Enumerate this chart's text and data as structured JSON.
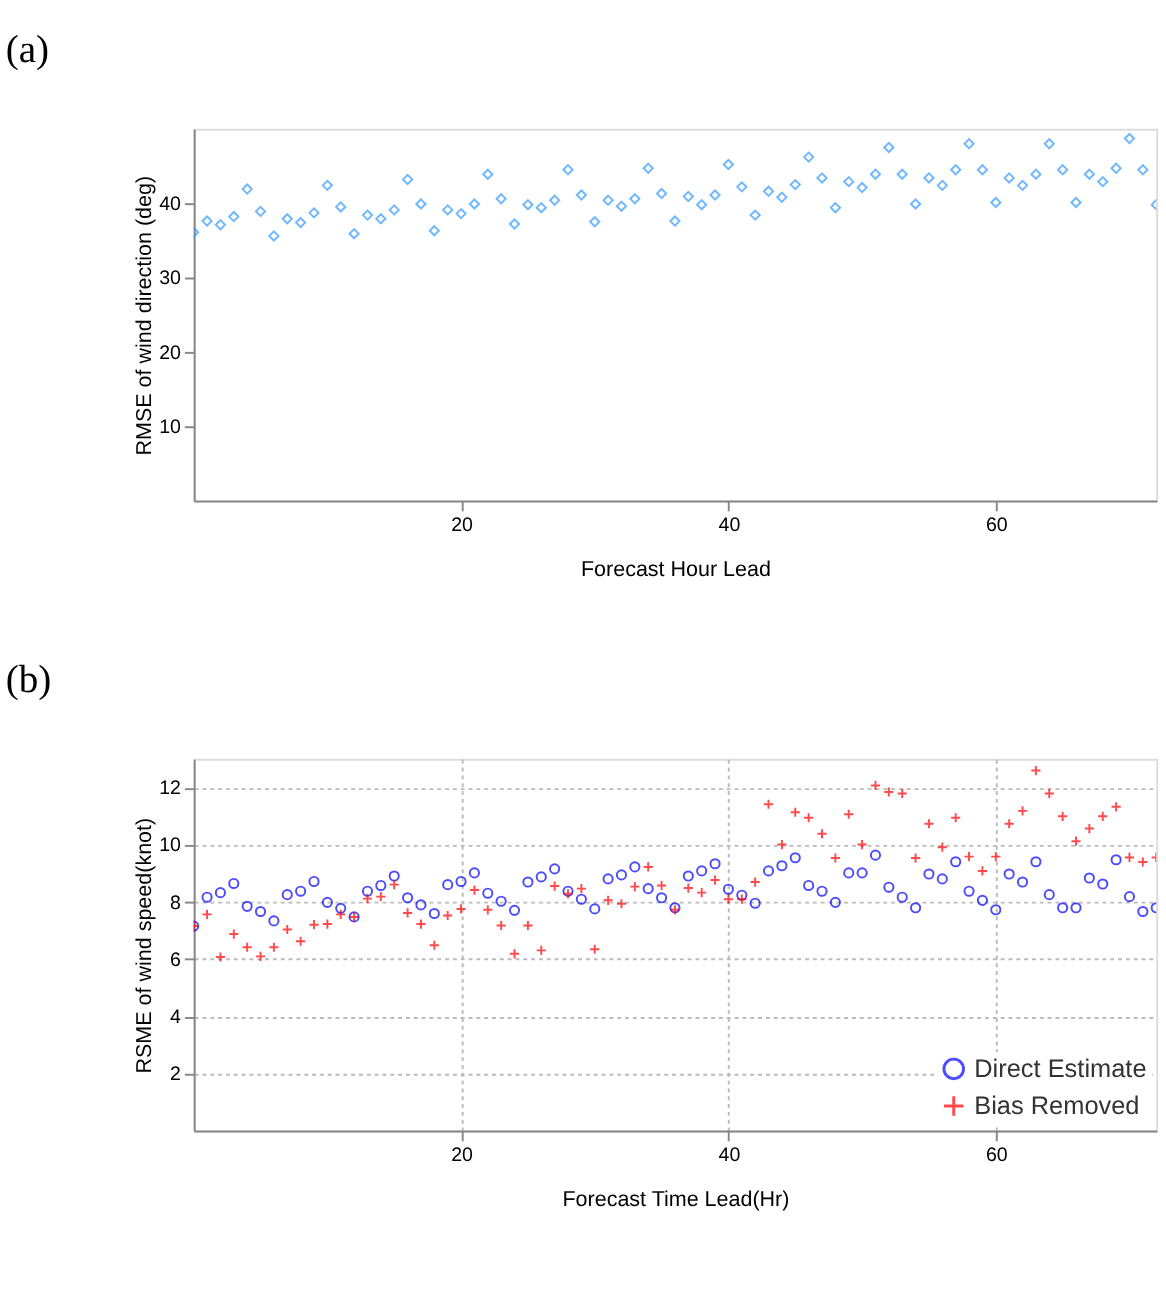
{
  "chart_data": [
    {
      "type": "scatter",
      "title": "(a)",
      "xlabel": "Forecast Hour Lead",
      "ylabel": "RMSE of wind direction (deg)",
      "xlim": [
        0,
        72
      ],
      "ylim": [
        0,
        50
      ],
      "xticks": [
        20,
        40,
        60
      ],
      "yticks": [
        10,
        20,
        30,
        40
      ],
      "grid": false,
      "legend": false,
      "x": [
        0,
        1,
        2,
        3,
        4,
        5,
        6,
        7,
        8,
        9,
        10,
        11,
        12,
        13,
        14,
        15,
        16,
        17,
        18,
        19,
        20,
        21,
        22,
        23,
        24,
        25,
        26,
        27,
        28,
        29,
        30,
        31,
        32,
        33,
        34,
        35,
        36,
        37,
        38,
        39,
        40,
        41,
        42,
        43,
        44,
        45,
        46,
        47,
        48,
        49,
        50,
        51,
        52,
        53,
        54,
        55,
        56,
        57,
        58,
        59,
        60,
        61,
        62,
        63,
        64,
        65,
        66,
        67,
        68,
        69,
        70,
        71,
        72
      ],
      "series": [
        {
          "color": "#3399ff",
          "marker": "diamond",
          "values": [
            36.1,
            37.6,
            37.1,
            38.2,
            41.9,
            38.9,
            35.6,
            37.9,
            37.4,
            38.7,
            42.4,
            39.5,
            35.9,
            38.4,
            37.9,
            39.1,
            43.2,
            39.9,
            36.3,
            39.1,
            38.6,
            39.9,
            43.9,
            40.6,
            37.2,
            39.8,
            39.4,
            40.4,
            44.5,
            41.1,
            37.5,
            40.4,
            39.6,
            40.6,
            44.7,
            41.3,
            37.6,
            40.9,
            39.8,
            41.1,
            45.2,
            42.2,
            38.4,
            41.6,
            40.8,
            42.5,
            46.2,
            43.4,
            39.4,
            42.9,
            42.1,
            43.9,
            47.5,
            43.9,
            39.9,
            43.4,
            42.4,
            44.5,
            48.0,
            44.5,
            40.1,
            43.4,
            42.4,
            43.9,
            48.0,
            44.5,
            40.1,
            43.9,
            42.9,
            44.7,
            48.7,
            44.5,
            39.8
          ]
        }
      ]
    },
    {
      "type": "scatter",
      "title": "(b)",
      "xlabel": "Forecast Time Lead(Hr)",
      "ylabel": "RSME of wind speed(knot)",
      "xlim": [
        0,
        72
      ],
      "ylim": [
        0,
        13
      ],
      "xticks": [
        20,
        40,
        60
      ],
      "yticks": [
        2,
        4,
        6,
        8,
        10,
        12
      ],
      "grid": true,
      "legend": "bottom right",
      "x": [
        0,
        1,
        2,
        3,
        4,
        5,
        6,
        7,
        8,
        9,
        10,
        11,
        12,
        13,
        14,
        15,
        16,
        17,
        18,
        19,
        20,
        21,
        22,
        23,
        24,
        25,
        26,
        27,
        28,
        29,
        30,
        31,
        32,
        33,
        34,
        35,
        36,
        37,
        38,
        39,
        40,
        41,
        42,
        43,
        44,
        45,
        46,
        47,
        48,
        49,
        50,
        51,
        52,
        53,
        54,
        55,
        56,
        57,
        58,
        59,
        60,
        61,
        62,
        63,
        64,
        65,
        66,
        67,
        68,
        69,
        70,
        71,
        72
      ],
      "series": [
        {
          "name": "Direct Estimate",
          "color": "#0000ff",
          "marker": "circle",
          "values": [
            7.15,
            8.16,
            8.32,
            8.64,
            7.84,
            7.66,
            7.33,
            8.25,
            8.37,
            8.71,
            7.98,
            7.77,
            7.47,
            8.37,
            8.57,
            8.9,
            8.14,
            7.89,
            7.59,
            8.6,
            8.71,
            9.01,
            8.3,
            8.02,
            7.7,
            8.69,
            8.87,
            9.15,
            8.37,
            8.09,
            7.75,
            8.8,
            8.94,
            9.22,
            8.46,
            8.14,
            7.79,
            8.9,
            9.08,
            9.33,
            8.44,
            8.23,
            7.95,
            9.08,
            9.26,
            9.54,
            8.57,
            8.37,
            7.98,
            9.01,
            9.01,
            9.63,
            8.51,
            8.16,
            7.79,
            8.97,
            8.8,
            9.4,
            8.37,
            8.05,
            7.72,
            8.97,
            8.69,
            9.4,
            8.25,
            7.79,
            7.79,
            8.83,
            8.62,
            9.47,
            8.18,
            7.66,
            7.79
          ]
        },
        {
          "name": "Bias Removed",
          "color": "#ff0000",
          "marker": "cross",
          "values": [
            7.15,
            7.56,
            6.07,
            6.87,
            6.41,
            6.09,
            6.41,
            7.03,
            6.62,
            7.2,
            7.22,
            7.56,
            7.47,
            8.11,
            8.18,
            8.6,
            7.61,
            7.22,
            6.48,
            7.52,
            7.75,
            8.41,
            7.72,
            7.17,
            6.18,
            7.17,
            6.3,
            8.55,
            8.28,
            8.46,
            6.34,
            8.05,
            7.93,
            8.53,
            9.22,
            8.57,
            7.72,
            8.48,
            8.32,
            8.76,
            8.09,
            8.09,
            8.69,
            11.41,
            10.0,
            11.13,
            10.94,
            10.38,
            9.53,
            11.06,
            10.0,
            12.07,
            11.84,
            11.79,
            9.53,
            10.73,
            9.91,
            10.94,
            9.58,
            9.08,
            9.58,
            10.73,
            11.18,
            12.59,
            11.79,
            10.99,
            10.12,
            10.56,
            10.99,
            11.32,
            9.55,
            9.39,
            9.55
          ]
        }
      ]
    }
  ]
}
